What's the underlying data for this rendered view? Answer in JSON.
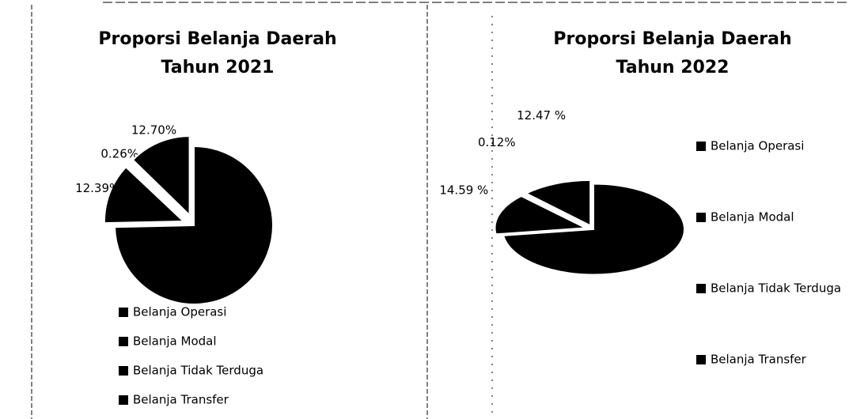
{
  "chart_data": [
    {
      "type": "pie",
      "title": [
        "Proporsi Belanja Daerah",
        "Tahun 2021"
      ],
      "categories": [
        "Belanja Operasi",
        "Belanja Modal",
        "Belanja Tidak Terduga",
        "Belanja Transfer"
      ],
      "values": [
        74.65,
        12.39,
        0.26,
        12.7
      ],
      "value_labels": [
        null,
        "12.39%",
        "0.26%",
        "12.70%"
      ],
      "colors": [
        "#000000",
        "#000000",
        "#000000",
        "#000000"
      ],
      "legend": "bottom"
    },
    {
      "type": "pie",
      "title": [
        "Proporsi Belanja Daerah",
        "Tahun 2022"
      ],
      "categories": [
        "Belanja Operasi",
        "Belanja Modal",
        "Belanja Tidak Terduga",
        "Belanja Transfer"
      ],
      "values": [
        72.82,
        14.59,
        0.12,
        12.47
      ],
      "value_labels": [
        null,
        "14.59 %",
        "0.12%",
        "12.47 %"
      ],
      "colors": [
        "#000000",
        "#000000",
        "#000000",
        "#000000"
      ],
      "legend": "right"
    }
  ]
}
